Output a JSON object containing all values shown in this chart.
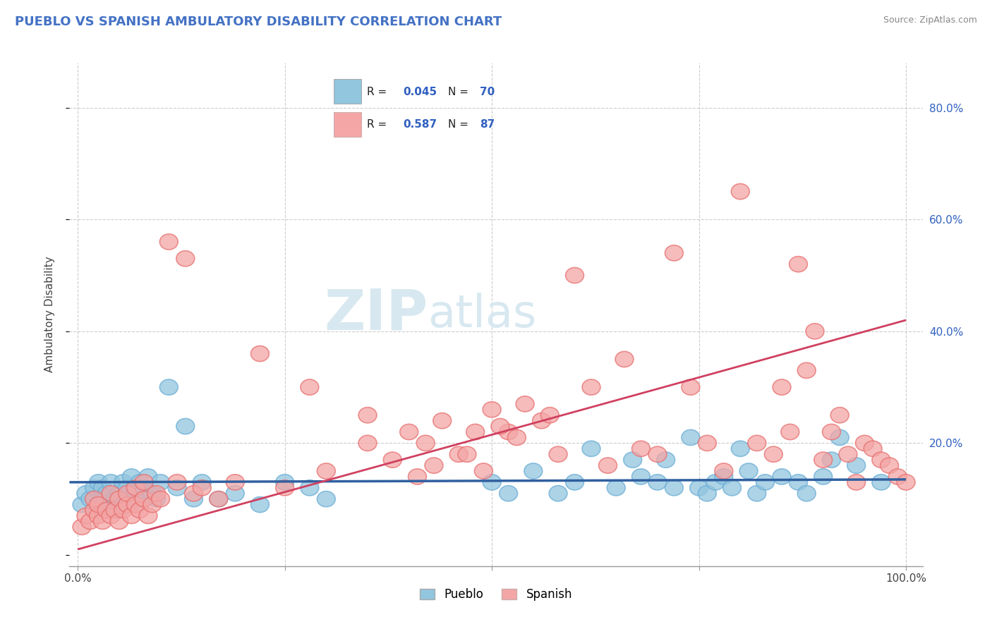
{
  "title": "PUEBLO VS SPANISH AMBULATORY DISABILITY CORRELATION CHART",
  "source": "Source: ZipAtlas.com",
  "ylabel": "Ambulatory Disability",
  "xlim": [
    -0.01,
    1.02
  ],
  "ylim": [
    -0.02,
    0.88
  ],
  "yticks_right": [
    0.0,
    0.2,
    0.4,
    0.6,
    0.8
  ],
  "yticklabels_right": [
    "",
    "20.0%",
    "40.0%",
    "60.0%",
    "80.0%"
  ],
  "pueblo_r": 0.045,
  "pueblo_n": 70,
  "spanish_r": 0.587,
  "spanish_n": 87,
  "pueblo_color": "#92c5de",
  "pueblo_edge_color": "#6baed6",
  "spanish_color": "#f4a6a6",
  "spanish_edge_color": "#e87070",
  "pueblo_line_color": "#3060a0",
  "spanish_line_color": "#d04060",
  "legend_text_color": "#3060c0",
  "title_color": "#4472c4",
  "background_color": "#ffffff",
  "grid_color": "#cccccc",
  "pueblo_line_y0": 0.13,
  "pueblo_line_y1": 0.135,
  "spanish_line_y0": 0.01,
  "spanish_line_y1": 0.42,
  "pueblo_x": [
    0.005,
    0.01,
    0.015,
    0.02,
    0.02,
    0.025,
    0.025,
    0.03,
    0.03,
    0.035,
    0.04,
    0.04,
    0.045,
    0.05,
    0.05,
    0.055,
    0.055,
    0.06,
    0.06,
    0.065,
    0.07,
    0.07,
    0.075,
    0.08,
    0.08,
    0.085,
    0.09,
    0.095,
    0.1,
    0.11,
    0.12,
    0.13,
    0.14,
    0.15,
    0.17,
    0.19,
    0.22,
    0.25,
    0.28,
    0.3,
    0.5,
    0.52,
    0.55,
    0.58,
    0.6,
    0.62,
    0.65,
    0.67,
    0.68,
    0.7,
    0.71,
    0.72,
    0.74,
    0.75,
    0.76,
    0.77,
    0.78,
    0.79,
    0.8,
    0.81,
    0.82,
    0.83,
    0.85,
    0.87,
    0.88,
    0.9,
    0.91,
    0.92,
    0.94,
    0.97
  ],
  "pueblo_y": [
    0.09,
    0.11,
    0.1,
    0.08,
    0.12,
    0.09,
    0.13,
    0.1,
    0.12,
    0.11,
    0.09,
    0.13,
    0.1,
    0.08,
    0.11,
    0.13,
    0.1,
    0.12,
    0.09,
    0.14,
    0.11,
    0.09,
    0.13,
    0.1,
    0.12,
    0.14,
    0.11,
    0.1,
    0.13,
    0.3,
    0.12,
    0.23,
    0.1,
    0.13,
    0.1,
    0.11,
    0.09,
    0.13,
    0.12,
    0.1,
    0.13,
    0.11,
    0.15,
    0.11,
    0.13,
    0.19,
    0.12,
    0.17,
    0.14,
    0.13,
    0.17,
    0.12,
    0.21,
    0.12,
    0.11,
    0.13,
    0.14,
    0.12,
    0.19,
    0.15,
    0.11,
    0.13,
    0.14,
    0.13,
    0.11,
    0.14,
    0.17,
    0.21,
    0.16,
    0.13
  ],
  "spanish_x": [
    0.005,
    0.01,
    0.015,
    0.02,
    0.02,
    0.025,
    0.025,
    0.03,
    0.035,
    0.04,
    0.04,
    0.045,
    0.05,
    0.05,
    0.055,
    0.06,
    0.06,
    0.065,
    0.07,
    0.07,
    0.075,
    0.08,
    0.08,
    0.085,
    0.09,
    0.095,
    0.1,
    0.11,
    0.12,
    0.13,
    0.14,
    0.15,
    0.17,
    0.19,
    0.22,
    0.25,
    0.28,
    0.3,
    0.35,
    0.38,
    0.4,
    0.42,
    0.44,
    0.46,
    0.48,
    0.5,
    0.52,
    0.54,
    0.56,
    0.58,
    0.6,
    0.62,
    0.64,
    0.66,
    0.68,
    0.7,
    0.72,
    0.74,
    0.76,
    0.78,
    0.8,
    0.82,
    0.84,
    0.85,
    0.86,
    0.87,
    0.88,
    0.89,
    0.9,
    0.91,
    0.92,
    0.93,
    0.94,
    0.95,
    0.96,
    0.97,
    0.98,
    0.99,
    1.0,
    0.35,
    0.41,
    0.43,
    0.47,
    0.49,
    0.51,
    0.53,
    0.57
  ],
  "spanish_y": [
    0.05,
    0.07,
    0.06,
    0.08,
    0.1,
    0.07,
    0.09,
    0.06,
    0.08,
    0.07,
    0.11,
    0.08,
    0.06,
    0.1,
    0.08,
    0.09,
    0.11,
    0.07,
    0.09,
    0.12,
    0.08,
    0.1,
    0.13,
    0.07,
    0.09,
    0.11,
    0.1,
    0.56,
    0.13,
    0.53,
    0.11,
    0.12,
    0.1,
    0.13,
    0.36,
    0.12,
    0.3,
    0.15,
    0.25,
    0.17,
    0.22,
    0.2,
    0.24,
    0.18,
    0.22,
    0.26,
    0.22,
    0.27,
    0.24,
    0.18,
    0.5,
    0.3,
    0.16,
    0.35,
    0.19,
    0.18,
    0.54,
    0.3,
    0.2,
    0.15,
    0.65,
    0.2,
    0.18,
    0.3,
    0.22,
    0.52,
    0.33,
    0.4,
    0.17,
    0.22,
    0.25,
    0.18,
    0.13,
    0.2,
    0.19,
    0.17,
    0.16,
    0.14,
    0.13,
    0.2,
    0.14,
    0.16,
    0.18,
    0.15,
    0.23,
    0.21,
    0.25
  ]
}
